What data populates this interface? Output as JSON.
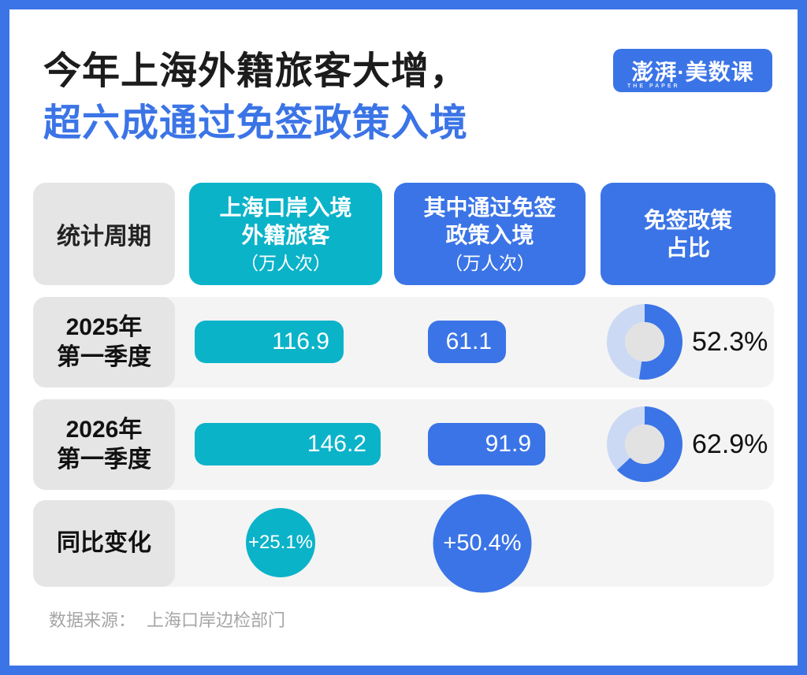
{
  "title": {
    "line1": "今年上海外籍旅客大增，",
    "line2": "超六成通过免签政策入境"
  },
  "logo": {
    "main": "澎湃·美数课",
    "sub": "THE PAPER"
  },
  "header": {
    "period": "统计周期",
    "col_total": {
      "line1": "上海口岸入境",
      "line2": "外籍旅客",
      "unit": "（万人次）"
    },
    "col_visa_free": {
      "line1": "其中通过免签",
      "line2": "政策入境",
      "unit": "（万人次）"
    },
    "col_share": {
      "line1": "免签政策",
      "line2": "占比"
    }
  },
  "rows": [
    {
      "period_line1": "2025年",
      "period_line2": "第一季度",
      "total_label": "116.9",
      "visa_label": "61.1",
      "share_label": "52.3%"
    },
    {
      "period_line1": "2026年",
      "period_line2": "第一季度",
      "total_label": "146.2",
      "visa_label": "91.9",
      "share_label": "62.9%"
    }
  ],
  "change_row": {
    "label": "同比变化",
    "total_change": "+25.1%",
    "visa_change": "+50.4%"
  },
  "source": {
    "label": "数据来源：",
    "value": "上海口岸边检部门"
  },
  "colors": {
    "blue": "#3B74E6",
    "teal": "#0BB3C9",
    "donut_rest": "#CBD9F4",
    "donut_hole": "#E2E2E2",
    "row_band": "#F4F4F4",
    "label_cell": "#E5E5E5",
    "title_black": "#1C1C1C",
    "source_gray": "#A5A5A5"
  },
  "chart_data": {
    "type": "table",
    "title": "今年上海外籍旅客大增，超六成通过免签政策入境",
    "columns": [
      "统计周期",
      "上海口岸入境外籍旅客（万人次）",
      "其中通过免签政策入境（万人次）",
      "免签政策占比"
    ],
    "rows": [
      {
        "period": "2025年第一季度",
        "total": 116.9,
        "visa_free": 61.1,
        "share_pct": 52.3
      },
      {
        "period": "2026年第一季度",
        "total": 146.2,
        "visa_free": 91.9,
        "share_pct": 62.9
      }
    ],
    "yoy_change": {
      "label": "同比变化",
      "total_pct": 25.1,
      "visa_free_pct": 50.4
    },
    "bar_unit": "万人次",
    "donut_start": "top-clockwise",
    "source": "数据来源：上海口岸边检部门"
  }
}
